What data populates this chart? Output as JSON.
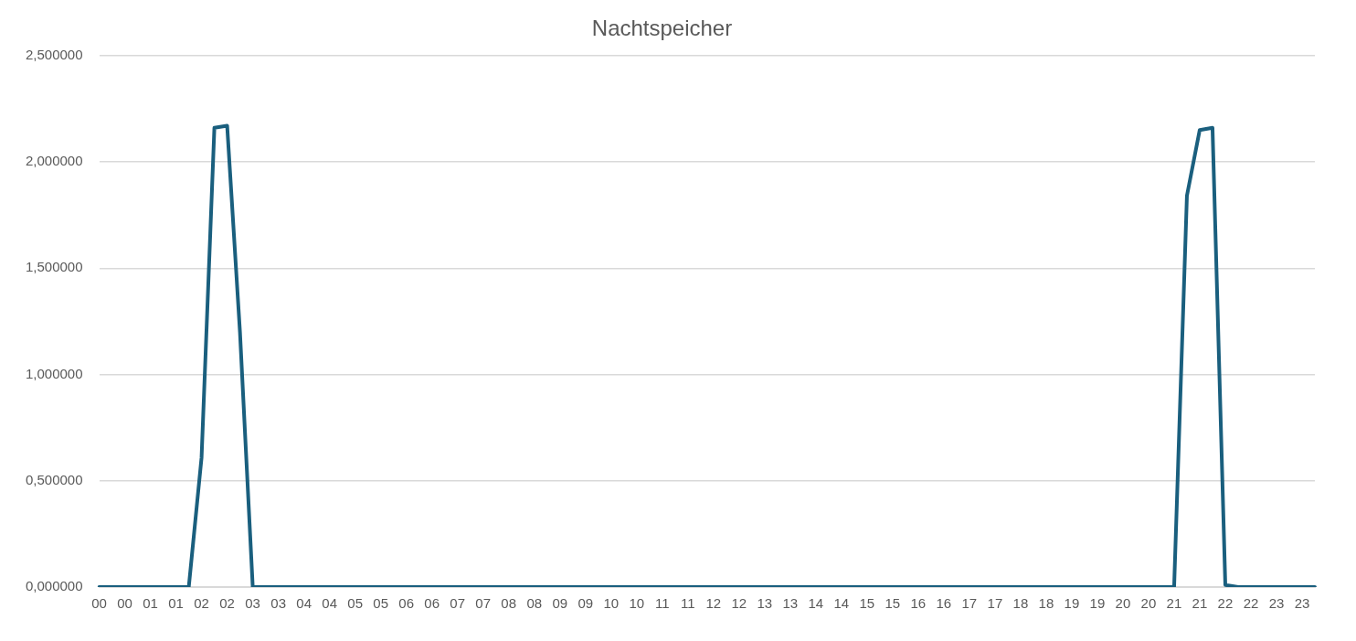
{
  "chart_data": {
    "type": "line",
    "title": "Nachtspeicher",
    "categories": [
      "00",
      null,
      "00",
      null,
      "01",
      null,
      "01",
      null,
      "02",
      null,
      "02",
      null,
      "03",
      null,
      "03",
      null,
      "04",
      null,
      "04",
      null,
      "05",
      null,
      "05",
      null,
      "06",
      null,
      "06",
      null,
      "07",
      null,
      "07",
      null,
      "08",
      null,
      "08",
      null,
      "09",
      null,
      "09",
      null,
      "10",
      null,
      "10",
      null,
      "11",
      null,
      "11",
      null,
      "12",
      null,
      "12",
      null,
      "13",
      null,
      "13",
      null,
      "14",
      null,
      "14",
      null,
      "15",
      null,
      "15",
      null,
      "16",
      null,
      "16",
      null,
      "17",
      null,
      "17",
      null,
      "18",
      null,
      "18",
      null,
      "19",
      null,
      "19",
      null,
      "20",
      null,
      "20",
      null,
      "21",
      null,
      "21",
      null,
      "22",
      null,
      "22",
      null,
      "23",
      null,
      "23",
      null
    ],
    "series": [
      {
        "color": "#1a5f7e",
        "values": [
          0,
          0,
          0,
          0,
          0,
          0,
          0,
          0,
          0.61,
          2.16,
          2.17,
          1.2,
          0,
          0,
          0,
          0,
          0,
          0,
          0,
          0,
          0,
          0,
          0,
          0,
          0,
          0,
          0,
          0,
          0,
          0,
          0,
          0,
          0,
          0,
          0,
          0,
          0,
          0,
          0,
          0,
          0,
          0,
          0,
          0,
          0,
          0,
          0,
          0,
          0,
          0,
          0,
          0,
          0,
          0,
          0,
          0,
          0,
          0,
          0,
          0,
          0,
          0,
          0,
          0,
          0,
          0,
          0,
          0,
          0,
          0,
          0,
          0,
          0,
          0,
          0,
          0,
          0,
          0,
          0,
          0,
          0,
          0,
          0,
          0,
          0,
          1.84,
          2.15,
          2.16,
          0.01,
          0,
          0,
          0,
          0,
          0,
          0,
          0
        ]
      }
    ],
    "ylim": [
      0,
      2.5
    ],
    "yticks": [
      {
        "value": 0,
        "label": "0,000000"
      },
      {
        "value": 0.5,
        "label": "0,500000"
      },
      {
        "value": 1,
        "label": "1,000000"
      },
      {
        "value": 1.5,
        "label": "1,500000"
      },
      {
        "value": 2,
        "label": "2,000000"
      },
      {
        "value": 2.5,
        "label": "2,500000"
      }
    ],
    "grid": "y",
    "legend": false,
    "marker": "none",
    "line_style": "solid"
  }
}
